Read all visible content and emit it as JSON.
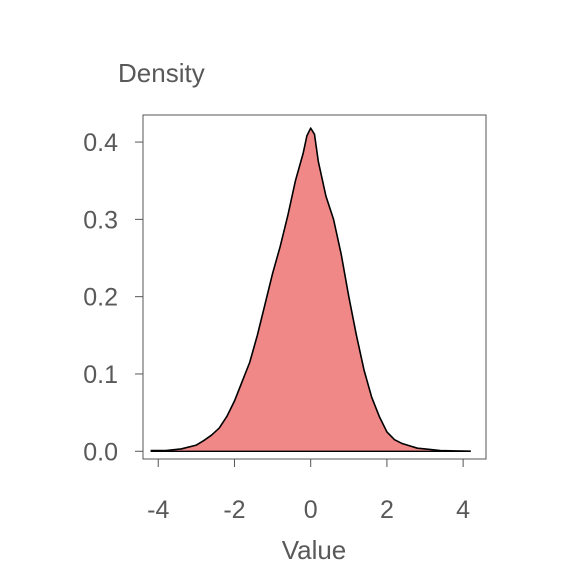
{
  "chart_data": {
    "type": "area",
    "title": "",
    "xlabel": "Value",
    "ylabel": "Density",
    "xlim": [
      -4.4,
      4.6
    ],
    "ylim": [
      -0.01,
      0.435
    ],
    "xticks": [
      -4,
      -2,
      0,
      2,
      4
    ],
    "xtick_labels": [
      "-4",
      "-2",
      "0",
      "2",
      "4"
    ],
    "yticks": [
      0.0,
      0.1,
      0.2,
      0.3,
      0.4
    ],
    "ytick_labels": [
      "0.0",
      "0.1",
      "0.2",
      "0.3",
      "0.4"
    ],
    "grid": false,
    "legend": "none",
    "fill_color": "#F08888",
    "line_color": "#000000",
    "x": [
      -4.2,
      -3.8,
      -3.4,
      -3.0,
      -2.8,
      -2.6,
      -2.4,
      -2.2,
      -2.0,
      -1.8,
      -1.6,
      -1.4,
      -1.2,
      -1.0,
      -0.8,
      -0.6,
      -0.4,
      -0.2,
      -0.1,
      0.0,
      0.1,
      0.2,
      0.4,
      0.6,
      0.8,
      1.0,
      1.2,
      1.4,
      1.6,
      1.8,
      2.0,
      2.2,
      2.4,
      2.6,
      2.8,
      3.0,
      3.4,
      3.8,
      4.2
    ],
    "y": [
      0.001,
      0.001,
      0.003,
      0.008,
      0.014,
      0.021,
      0.03,
      0.045,
      0.065,
      0.09,
      0.115,
      0.15,
      0.19,
      0.23,
      0.265,
      0.305,
      0.35,
      0.385,
      0.408,
      0.418,
      0.41,
      0.375,
      0.33,
      0.3,
      0.255,
      0.2,
      0.15,
      0.105,
      0.07,
      0.045,
      0.025,
      0.015,
      0.01,
      0.007,
      0.004,
      0.003,
      0.001,
      0.0005,
      0.0002
    ]
  }
}
